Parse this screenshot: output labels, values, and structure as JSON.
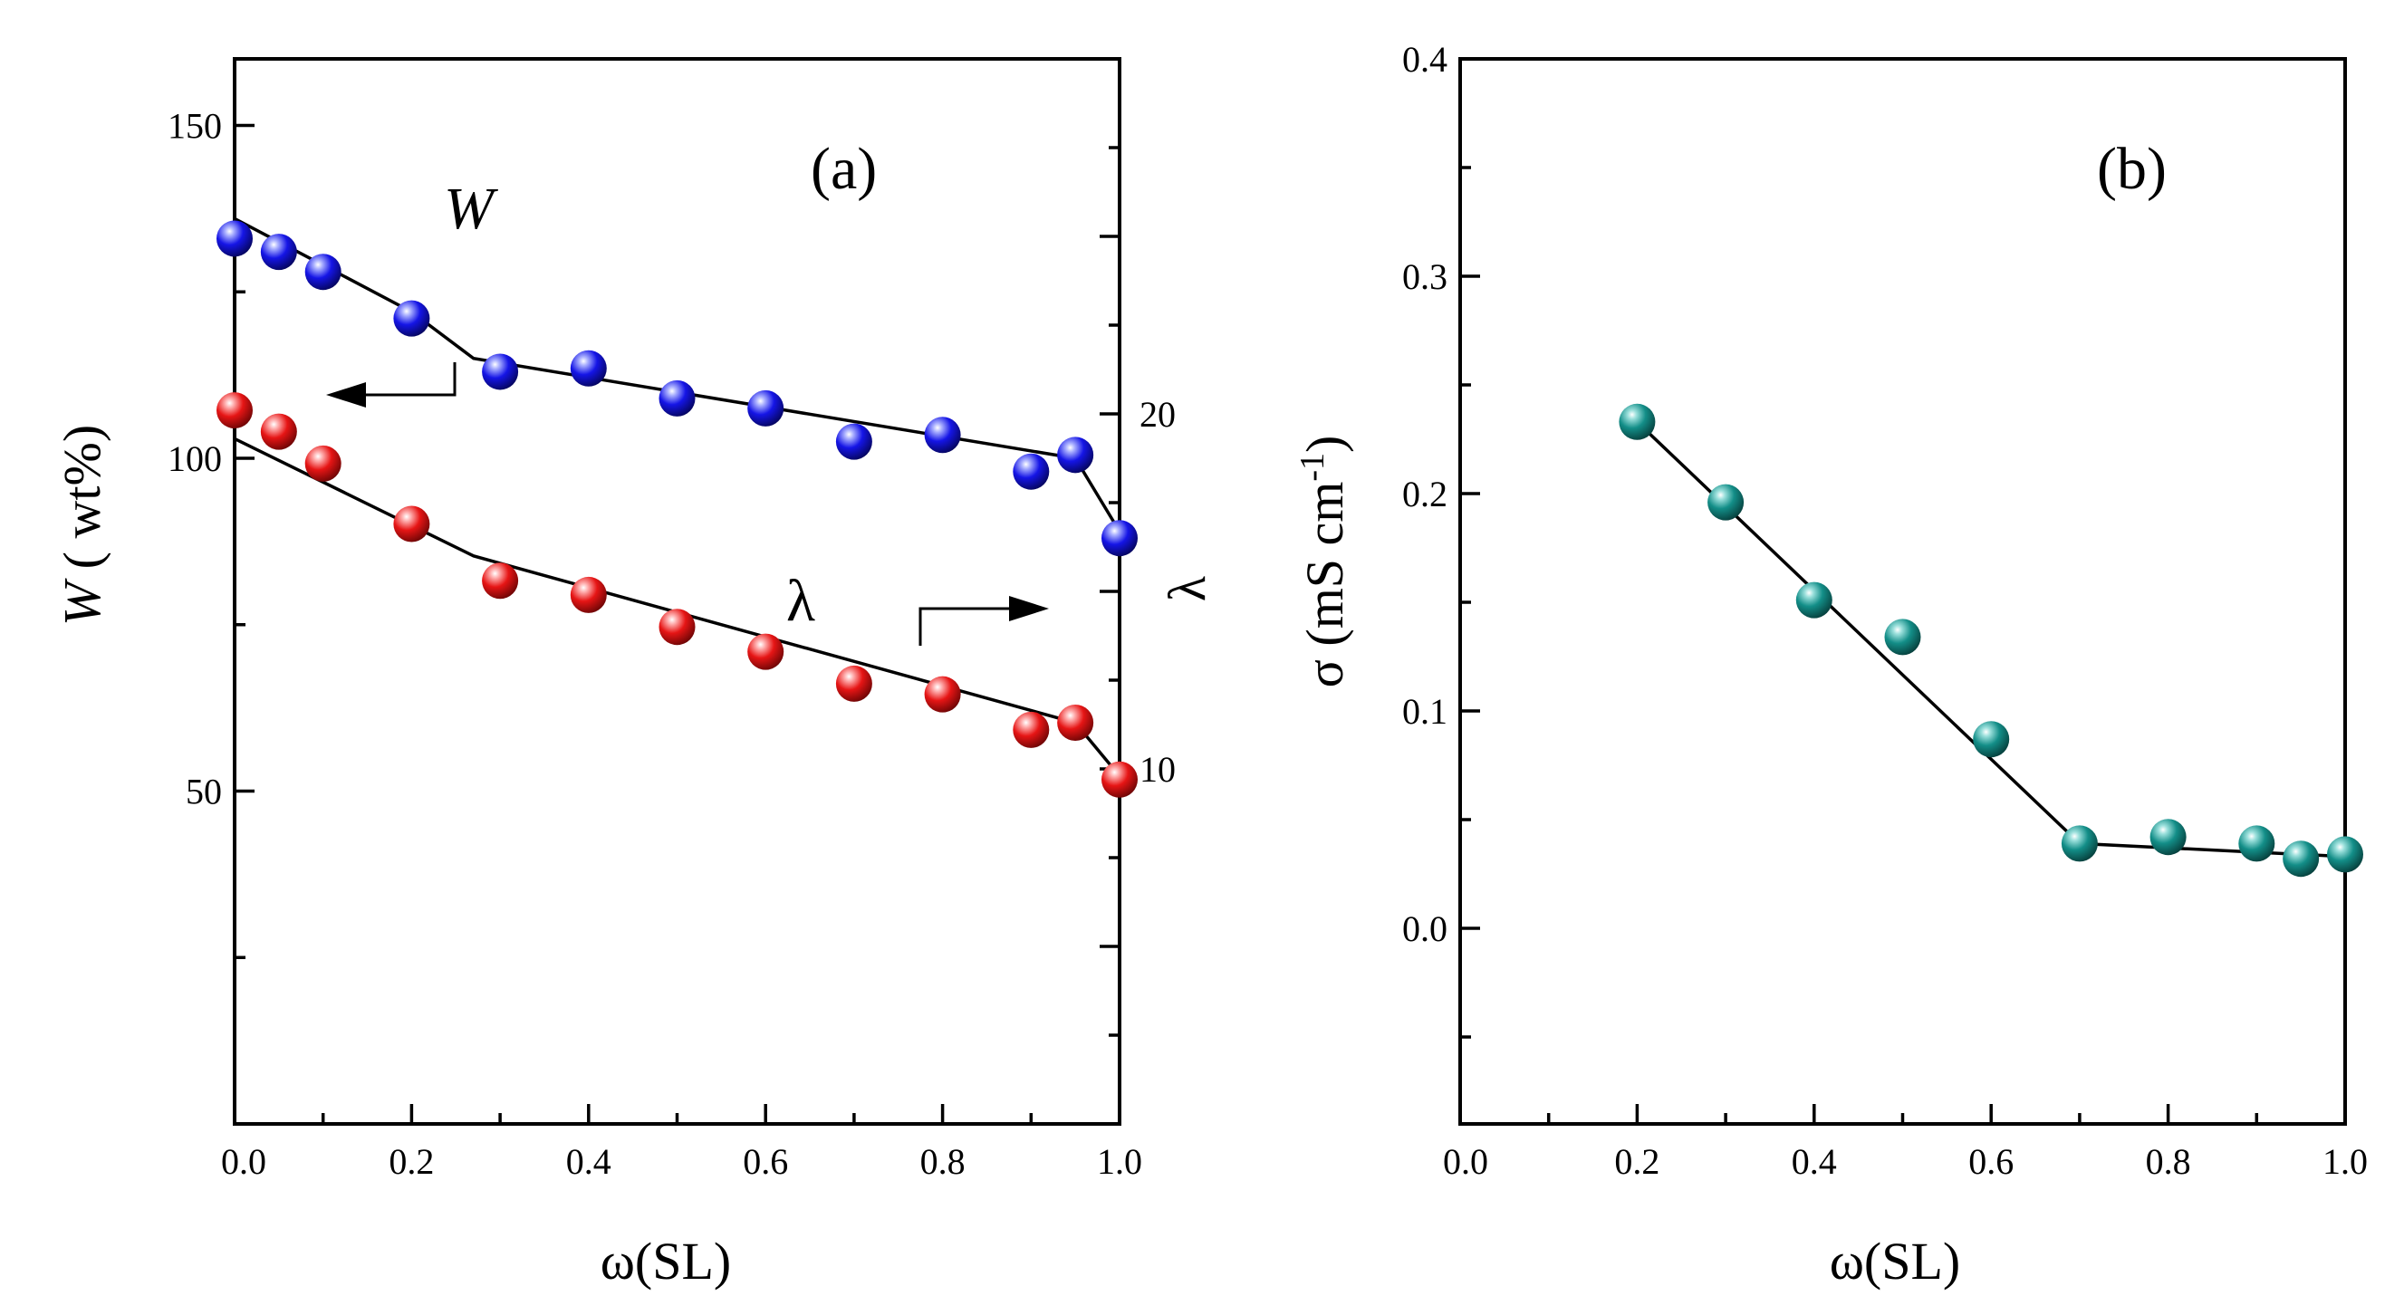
{
  "chart_data": [
    {
      "panel": "a",
      "type": "scatter",
      "label": "(a)",
      "xlabel": "ω(SL)",
      "ylabel_italic": "W",
      "ylabel_rest": " ( wt%)",
      "y2label": "λ",
      "xlim": [
        0.0,
        1.0
      ],
      "ylim": [
        0,
        160
      ],
      "y2lim": [
        0,
        30
      ],
      "xticks": [
        "0.0",
        "0.2",
        "0.4",
        "0.6",
        "0.8",
        "1.0"
      ],
      "yticks": [
        "50",
        "100",
        "150"
      ],
      "y2ticks": [
        "10",
        "20"
      ],
      "series": [
        {
          "name": "W",
          "label": "W",
          "axis": "left",
          "color": "#1515e6",
          "x": [
            0.0,
            0.05,
            0.1,
            0.2,
            0.3,
            0.4,
            0.5,
            0.6,
            0.7,
            0.8,
            0.9,
            0.95,
            1.0
          ],
          "y": [
            133,
            131,
            128,
            121,
            113,
            113.5,
            109,
            107.5,
            102.5,
            103.5,
            98,
            100.5,
            88
          ],
          "fit": [
            [
              0.0,
              136
            ],
            [
              0.1,
              129
            ],
            [
              0.2,
              122
            ],
            [
              0.27,
              115
            ],
            [
              0.95,
              100
            ],
            [
              1.0,
              89
            ]
          ]
        },
        {
          "name": "λ",
          "label": "λ",
          "axis": "right",
          "color": "#e61515",
          "x": [
            0.0,
            0.05,
            0.1,
            0.2,
            0.3,
            0.4,
            0.5,
            0.6,
            0.7,
            0.8,
            0.9,
            0.95,
            1.0
          ],
          "y": [
            20.1,
            19.5,
            18.6,
            16.9,
            15.3,
            14.9,
            14.0,
            13.3,
            12.4,
            12.1,
            11.1,
            11.3,
            9.7
          ],
          "fit": [
            [
              0.0,
              19.3
            ],
            [
              0.27,
              16.0
            ],
            [
              0.95,
              11.3
            ],
            [
              1.0,
              9.8
            ]
          ]
        }
      ]
    },
    {
      "panel": "b",
      "type": "scatter",
      "label": "(b)",
      "xlabel": "ω(SL)",
      "ylabel": "σ (mS cm",
      "ylabel_sup": "-1",
      "ylabel_end": ")",
      "xlim": [
        0.0,
        1.0
      ],
      "ylim": [
        -0.09,
        0.4
      ],
      "xticks": [
        "0.0",
        "0.2",
        "0.4",
        "0.6",
        "0.8",
        "1.0"
      ],
      "yticks": [
        "0.0",
        "0.1",
        "0.2",
        "0.3",
        "0.4"
      ],
      "series": [
        {
          "name": "σ",
          "color": "#138e88",
          "x": [
            0.2,
            0.3,
            0.4,
            0.5,
            0.6,
            0.7,
            0.8,
            0.9,
            0.95,
            1.0
          ],
          "y": [
            0.233,
            0.196,
            0.151,
            0.134,
            0.087,
            0.039,
            0.042,
            0.039,
            0.032,
            0.034
          ],
          "fit": [
            [
              0.2,
              0.233
            ],
            [
              0.7,
              0.039
            ],
            [
              1.0,
              0.033
            ]
          ]
        }
      ]
    }
  ]
}
